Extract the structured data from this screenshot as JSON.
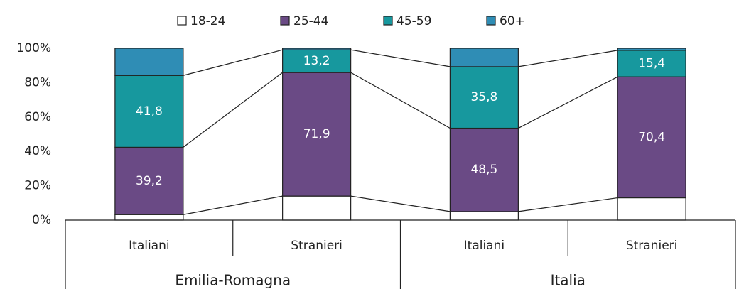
{
  "chart_data": {
    "type": "stacked_bar",
    "categories": [
      "Italiani",
      "Stranieri",
      "Italiani",
      "Stranieri"
    ],
    "group_labels": [
      "Emilia-Romagna",
      "Italia"
    ],
    "series": [
      {
        "name": "18-24",
        "color": "#ffffff",
        "values": [
          3.2,
          14,
          5,
          13
        ],
        "value_labels": [
          null,
          null,
          null,
          null
        ]
      },
      {
        "name": "25-44",
        "color": "#6a4a85",
        "values": [
          39.2,
          71.9,
          48.5,
          70.4
        ],
        "value_labels": [
          "39,2",
          "71,9",
          "48,5",
          "70,4"
        ]
      },
      {
        "name": "45-59",
        "color": "#17989e",
        "values": [
          41.8,
          13.2,
          35.8,
          15.4
        ],
        "value_labels": [
          "41,8",
          "13,2",
          "35,8",
          "15,4"
        ]
      },
      {
        "name": "60+",
        "color": "#2f8db5",
        "values": [
          15.8,
          0.9,
          10.7,
          1.2
        ],
        "value_labels": [
          null,
          null,
          null,
          null
        ]
      }
    ],
    "ylim": [
      0,
      100
    ],
    "yticks": [
      {
        "value": 0,
        "label": "0%"
      },
      {
        "value": 20,
        "label": "20%"
      },
      {
        "value": 40,
        "label": "40%"
      },
      {
        "value": 60,
        "label": "60%"
      },
      {
        "value": 80,
        "label": "80%"
      },
      {
        "value": 100,
        "label": "100%"
      }
    ],
    "legend": "top",
    "grid": false
  }
}
